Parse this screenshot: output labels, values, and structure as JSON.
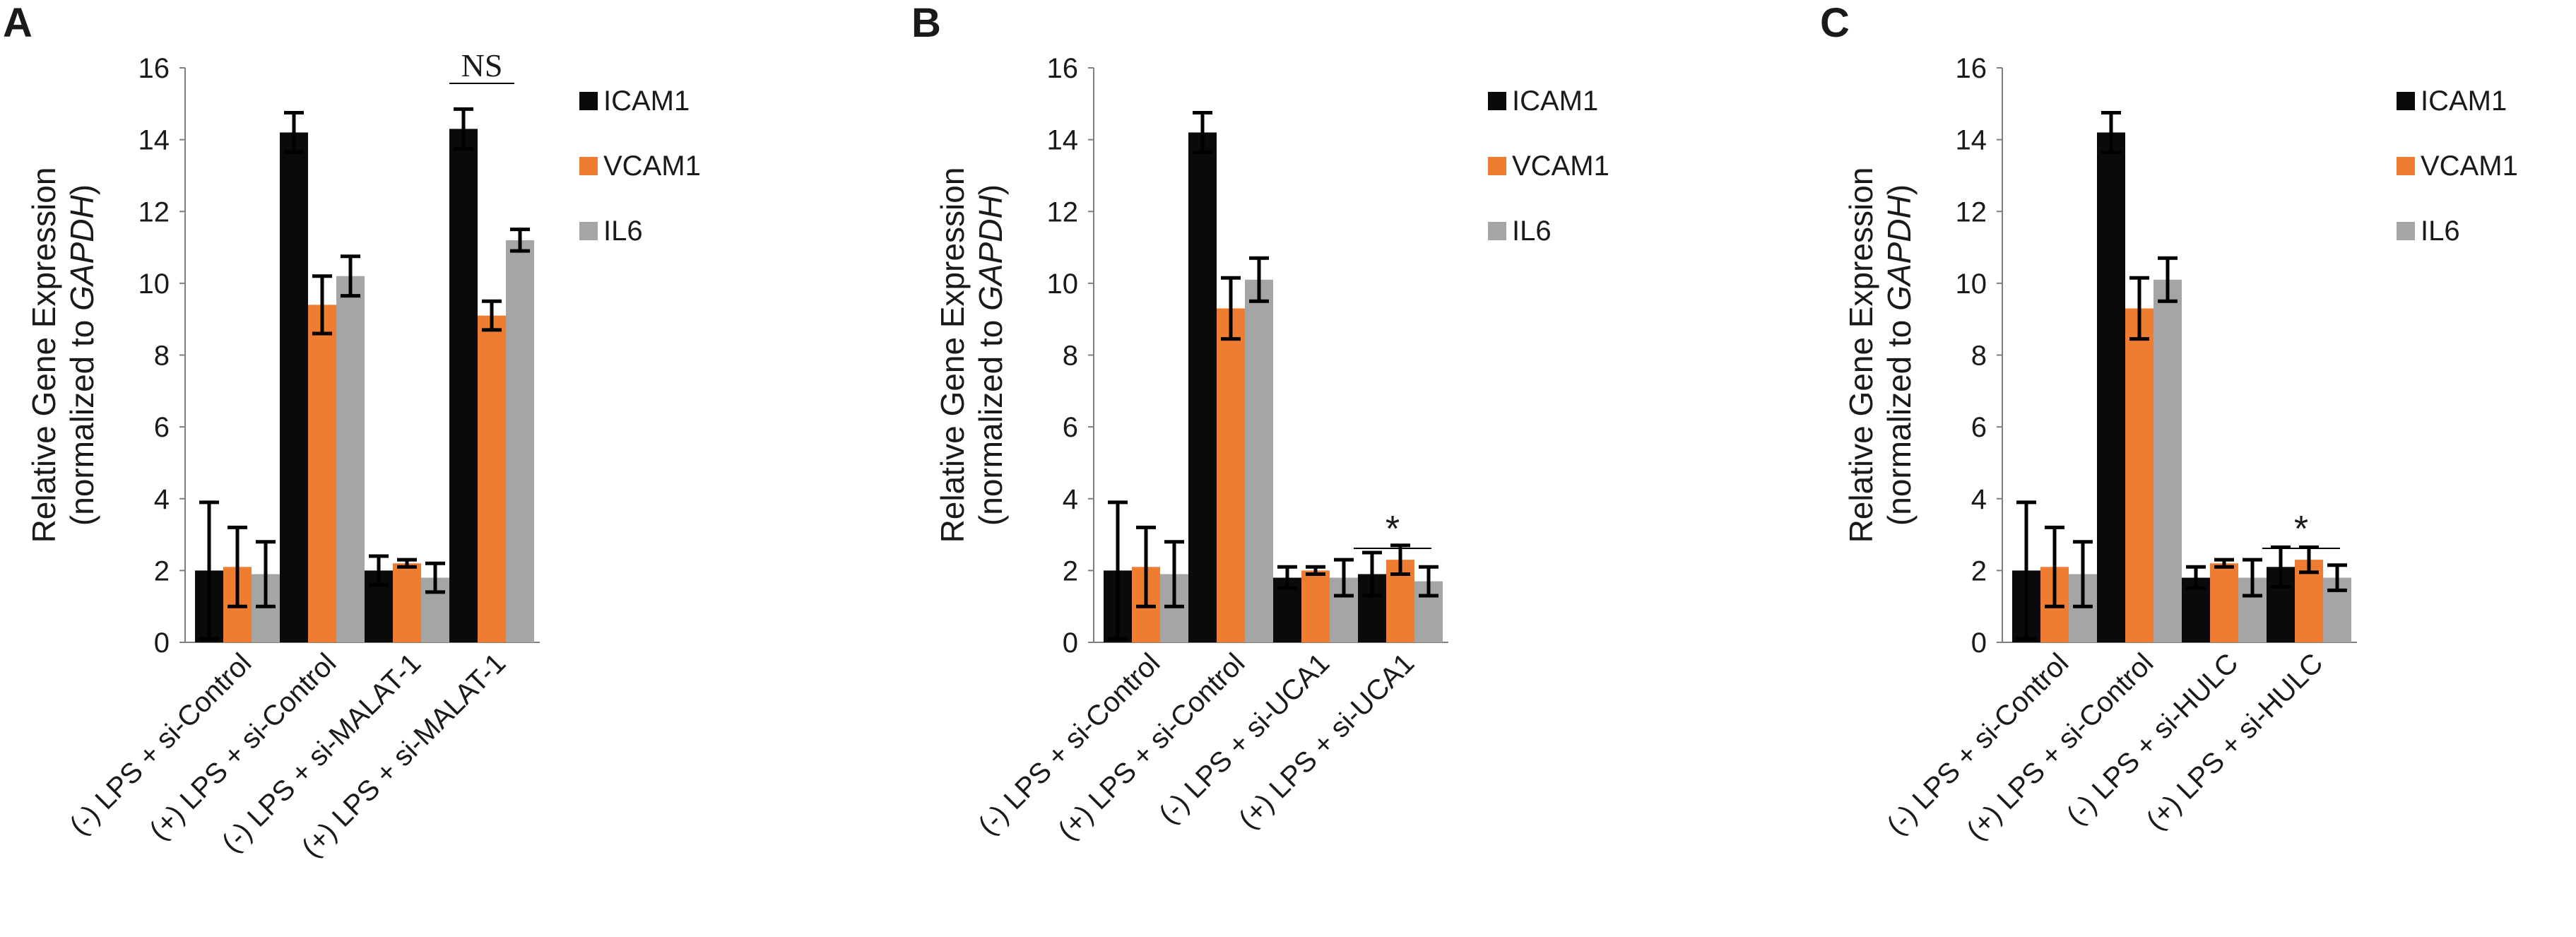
{
  "colors": {
    "ICAM1": "#0a0a0a",
    "VCAM1": "#ee7d31",
    "IL6": "#a5a5a5",
    "axis": "#7f7f7f",
    "errorbar": "#000000"
  },
  "chart_data": [
    {
      "type": "bar",
      "panel": "A",
      "ylabel_line1": "Relative Gene Expression",
      "ylabel_line2_prefix": "(normalized to ",
      "ylabel_line2_italic": "GAPDH",
      "ylabel_line2_suffix": ")",
      "ylim": [
        0,
        16
      ],
      "yticks": [
        0,
        2,
        4,
        6,
        8,
        10,
        12,
        14,
        16
      ],
      "categories": [
        "(-) LPS + si-Control",
        "(+) LPS + si-Control",
        "(-) LPS + si-MALAT-1",
        "(+) LPS + si-MALAT-1"
      ],
      "series": [
        {
          "name": "ICAM1",
          "values": [
            2.0,
            14.2,
            2.0,
            14.3
          ],
          "errors": [
            1.9,
            0.55,
            0.4,
            0.55
          ]
        },
        {
          "name": "VCAM1",
          "values": [
            2.1,
            9.4,
            2.2,
            9.1
          ],
          "errors": [
            1.1,
            0.8,
            0.1,
            0.4
          ]
        },
        {
          "name": "IL6",
          "values": [
            1.9,
            10.2,
            1.8,
            11.2
          ],
          "errors": [
            0.9,
            0.55,
            0.4,
            0.3
          ]
        }
      ],
      "annotations": [
        {
          "text": "NS",
          "category": 3
        }
      ]
    },
    {
      "type": "bar",
      "panel": "B",
      "ylabel_line1": "Relative Gene Expression",
      "ylabel_line2_prefix": "(normalized to ",
      "ylabel_line2_italic": "GAPDH",
      "ylabel_line2_suffix": ")",
      "ylim": [
        0,
        16
      ],
      "yticks": [
        0,
        2,
        4,
        6,
        8,
        10,
        12,
        14,
        16
      ],
      "categories": [
        "(-) LPS + si-Control",
        "(+) LPS + si-Control",
        "(-) LPS + si-UCA1",
        "(+) LPS + si-UCA1"
      ],
      "series": [
        {
          "name": "ICAM1",
          "values": [
            2.0,
            14.2,
            1.8,
            1.9
          ],
          "errors": [
            1.9,
            0.55,
            0.3,
            0.6
          ]
        },
        {
          "name": "VCAM1",
          "values": [
            2.1,
            9.3,
            2.0,
            2.3
          ],
          "errors": [
            1.1,
            0.85,
            0.1,
            0.4
          ]
        },
        {
          "name": "IL6",
          "values": [
            1.9,
            10.1,
            1.8,
            1.7
          ],
          "errors": [
            0.9,
            0.6,
            0.5,
            0.4
          ]
        }
      ],
      "annotations": [
        {
          "text": "*",
          "category": 3
        }
      ]
    },
    {
      "type": "bar",
      "panel": "C",
      "ylabel_line1": "Relative Gene Expression",
      "ylabel_line2_prefix": "(normalized to ",
      "ylabel_line2_italic": "GAPDH",
      "ylabel_line2_suffix": ")",
      "ylim": [
        0,
        16
      ],
      "yticks": [
        0,
        2,
        4,
        6,
        8,
        10,
        12,
        14,
        16
      ],
      "categories": [
        "(-) LPS + si-Control",
        "(+) LPS + si-Control",
        "(-) LPS + si-HULC",
        "(+) LPS + si-HULC"
      ],
      "series": [
        {
          "name": "ICAM1",
          "values": [
            2.0,
            14.2,
            1.8,
            2.1
          ],
          "errors": [
            1.9,
            0.55,
            0.3,
            0.55
          ]
        },
        {
          "name": "VCAM1",
          "values": [
            2.1,
            9.3,
            2.2,
            2.3
          ],
          "errors": [
            1.1,
            0.85,
            0.1,
            0.35
          ]
        },
        {
          "name": "IL6",
          "values": [
            1.9,
            10.1,
            1.8,
            1.8
          ],
          "errors": [
            0.9,
            0.6,
            0.5,
            0.35
          ]
        }
      ],
      "annotations": [
        {
          "text": "*",
          "category": 3
        }
      ]
    }
  ]
}
